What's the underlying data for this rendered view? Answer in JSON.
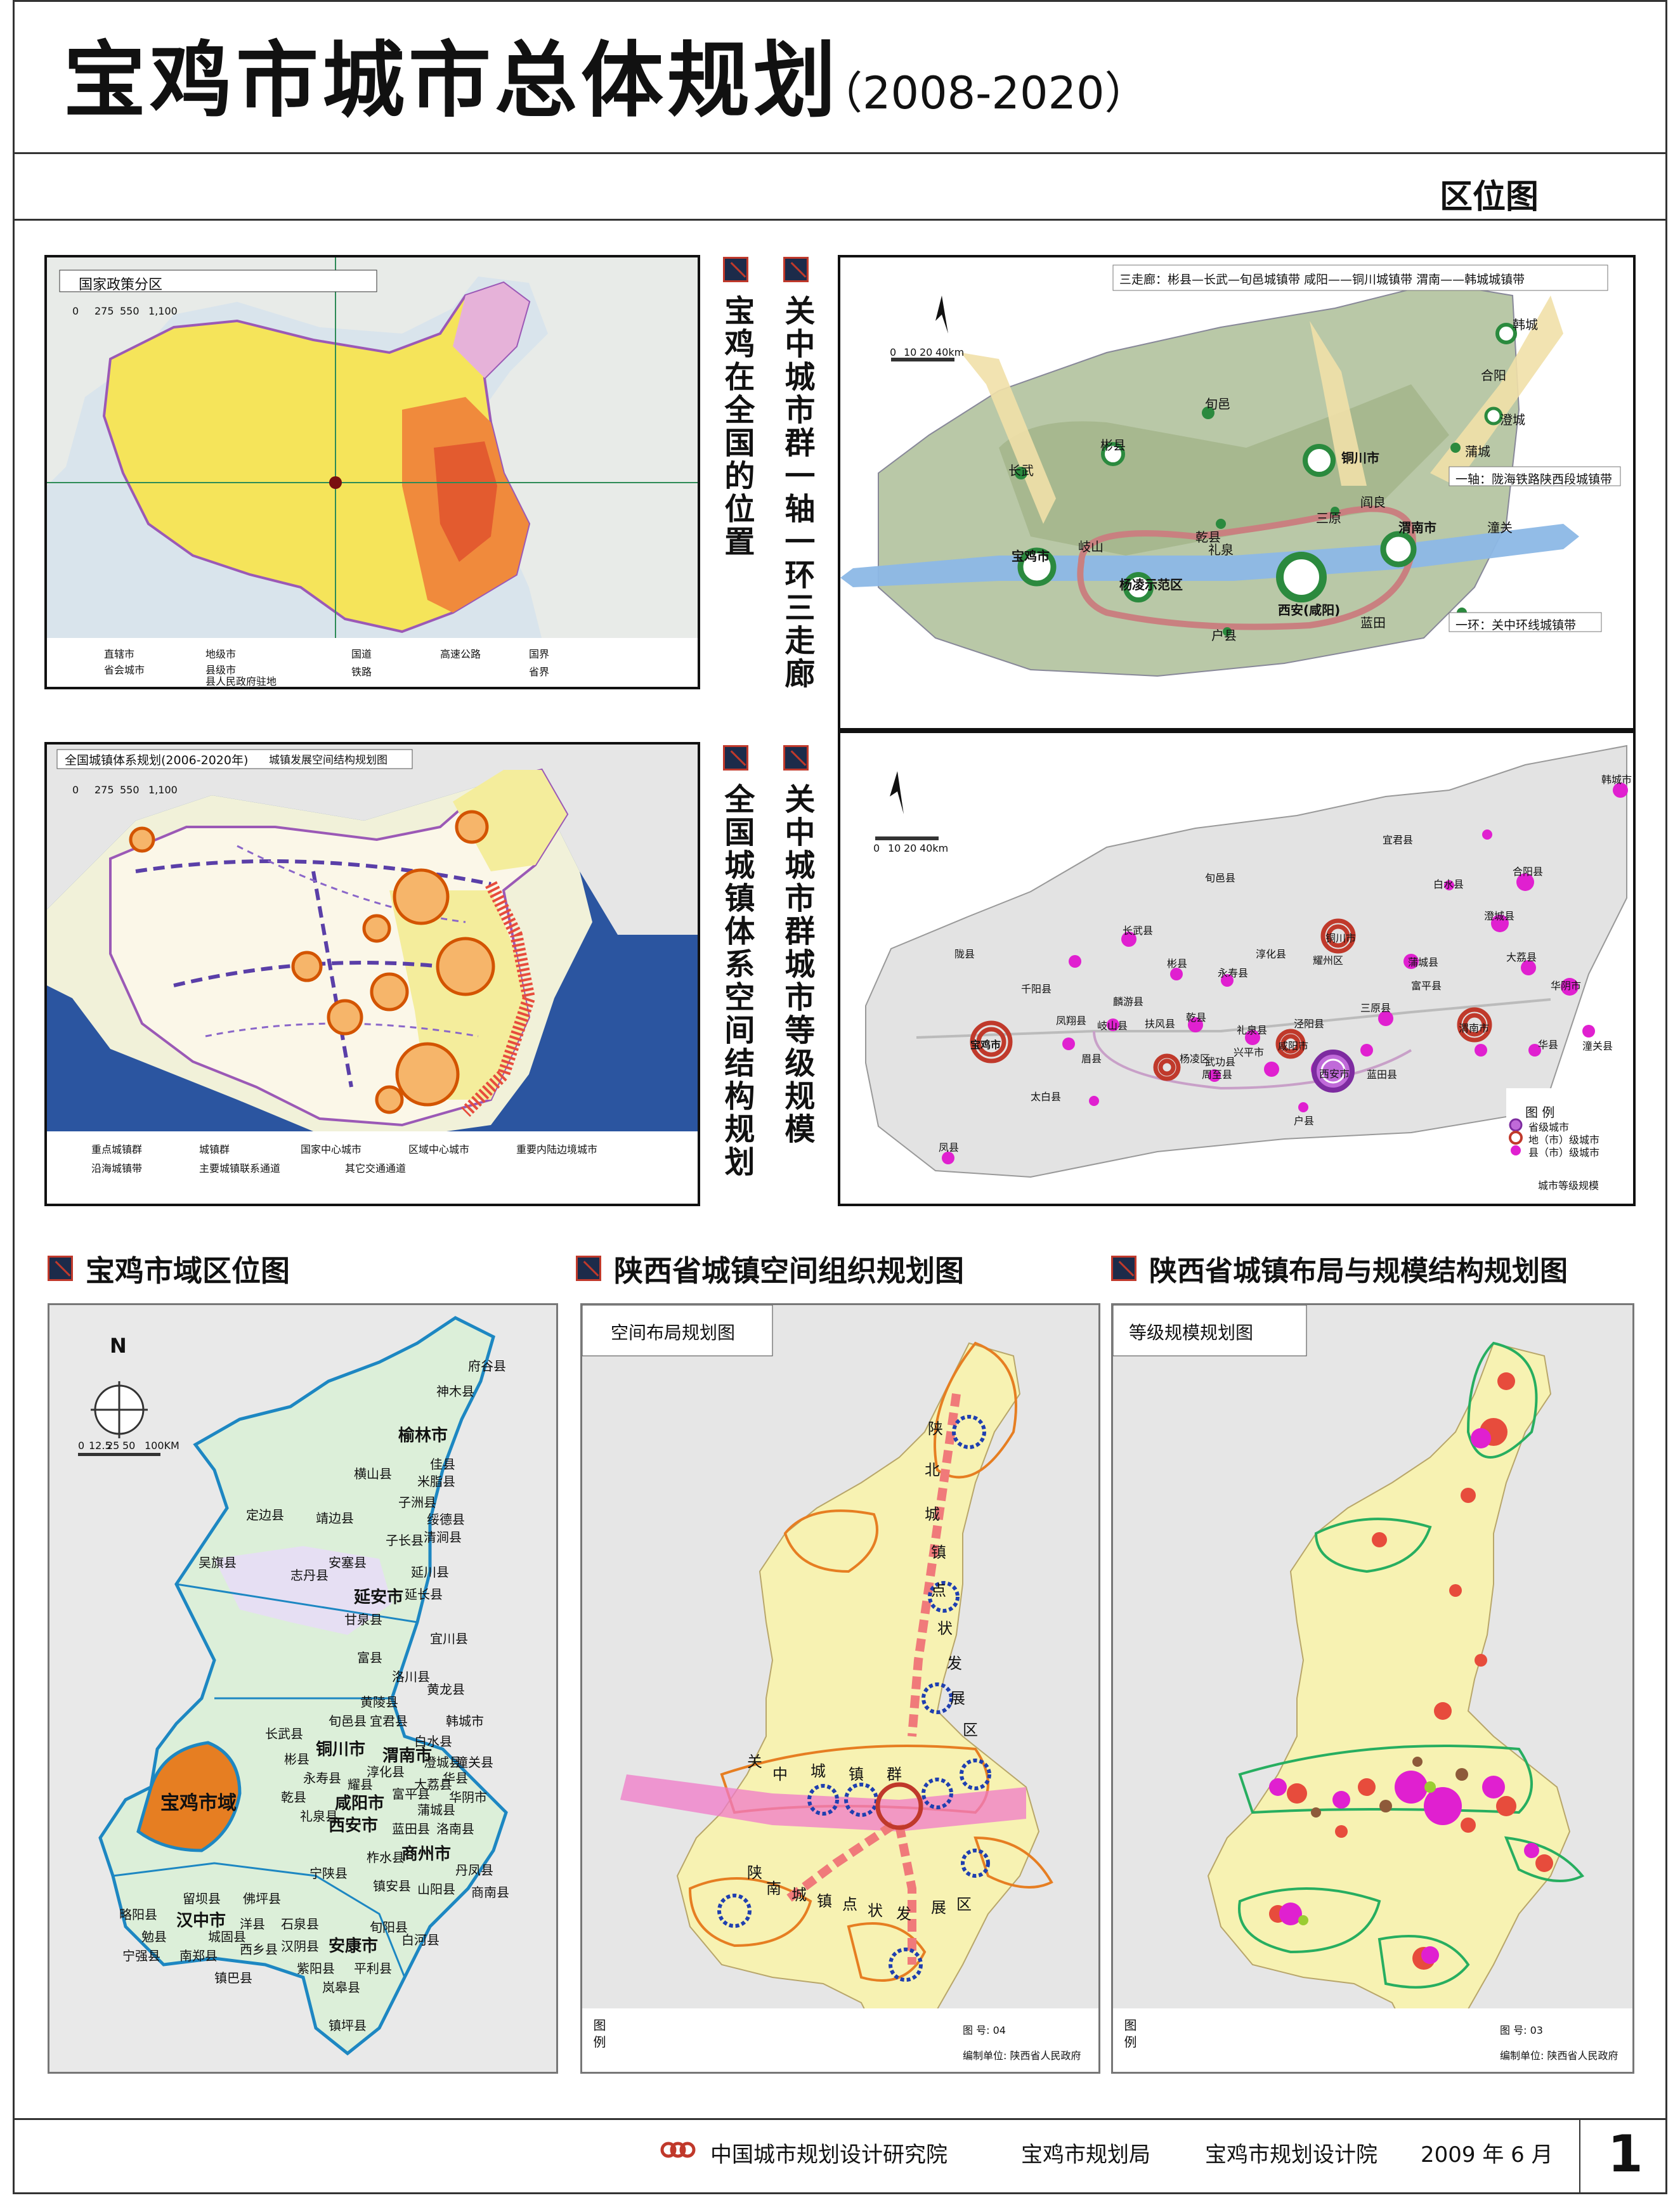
{
  "header": {
    "title": "宝鸡市城市总体规划",
    "years": "（2008-2020）",
    "subtitle": "区位图"
  },
  "panels": {
    "national_position": {
      "title": "宝鸡在全国的位置",
      "inset_title": "国家政策分区",
      "scale": [
        "0",
        "275",
        "550",
        "1,100"
      ],
      "legend": [
        "直辖市",
        "省会城市",
        "地级市",
        "县级市",
        "县人民政府驻地",
        "国道",
        "高速公路",
        "国界",
        "铁路",
        "省界"
      ]
    },
    "guanzhong_axis": {
      "title": "关中城市群一轴一环三走廊",
      "header_note": "三走廊：彬县—长武—旬邑城镇带    咸阳——铜川城镇带    渭南——韩城城镇带",
      "axis_note": "一轴：陇海铁路陕西段城镇带",
      "ring_note": "一环：关中环线城镇带",
      "scale": [
        "0",
        "10",
        "20",
        "40km"
      ],
      "cities": [
        "长武",
        "彬县",
        "旬邑",
        "铜川市",
        "合阳",
        "韩城",
        "澄城",
        "蒲城",
        "宝鸡市",
        "岐山",
        "乾县",
        "礼泉",
        "三原",
        "阎良",
        "渭南市",
        "潼关",
        "杨凌示范区",
        "西安(咸阳)",
        "户县",
        "蓝田"
      ]
    },
    "national_system": {
      "title": "全国城镇体系空间结构规划",
      "inset_title": "全国城镇体系规划(2006-2020年)",
      "inset_subtitle": "城镇发展空间结构规划图",
      "scale": [
        "0",
        "275",
        "550",
        "1,100"
      ],
      "legend": [
        "重点城镇群",
        "城镇群",
        "国家中心城市",
        "区域中心城市",
        "重要内陆边境城市",
        "沿海城镇带",
        "主要城镇联系通道",
        "其它交通通道"
      ]
    },
    "guanzhong_scale": {
      "title": "关中城市群城市等级规模",
      "scale": [
        "0",
        "10",
        "20",
        "40km"
      ],
      "legend_title": "图 例",
      "legend": [
        "省级城市",
        "地（市）级城市",
        "县（市）级城市"
      ],
      "caption": "城市等级规模",
      "cities": [
        "韩城市",
        "宝鸡市",
        "咸阳市",
        "渭南市",
        "铜川市",
        "西安市",
        "杨凌区",
        "凤县",
        "太白县",
        "眉县",
        "周至县",
        "户县",
        "蓝田县",
        "华县",
        "华阴市",
        "潼关县",
        "大荔县",
        "合阳县",
        "澄城县",
        "蒲城县",
        "富平县",
        "耀州区",
        "三原县",
        "泾阳县",
        "礼泉县",
        "乾县",
        "永寿县",
        "彬县",
        "长武县",
        "旬邑县",
        "淳化县",
        "麟游县",
        "千阳县",
        "陇县",
        "凤翔县",
        "岐山县",
        "扶风县",
        "武功县",
        "兴平市",
        "宜君县",
        "白水县"
      ]
    },
    "baoji_location": {
      "title": "宝鸡市域区位图",
      "highlight": "宝鸡市域",
      "scale": [
        "0",
        "12.5",
        "25",
        "50",
        "100KM"
      ],
      "north": "N",
      "cities": [
        "府谷县",
        "神木县",
        "榆林市",
        "佳县",
        "米脂县",
        "横山县",
        "定边县",
        "靖边县",
        "子洲县",
        "绥德县",
        "清涧县",
        "子长县",
        "吴旗县",
        "志丹县",
        "安塞县",
        "延川县",
        "延长县",
        "延安市",
        "甘泉县",
        "宜川县",
        "富县",
        "洛川县",
        "黄陵县",
        "黄龙县",
        "宜君县",
        "韩城市",
        "铜川市",
        "白水县",
        "澄城县",
        "旬邑县",
        "长武县",
        "彬县",
        "永寿县",
        "淳化县",
        "耀县",
        "富平县",
        "蒲城县",
        "大荔县",
        "渭南市",
        "华阴市",
        "潼关县",
        "华县",
        "乾县",
        "礼泉县",
        "咸阳市",
        "西安市",
        "蓝田县",
        "洛南县",
        "商州市",
        "丹凤县",
        "商南县",
        "山阳县",
        "镇安县",
        "柞水县",
        "宁陕县",
        "汉中市",
        "城固县",
        "洋县",
        "佛坪县",
        "留坝县",
        "略阳县",
        "勉县",
        "宁强县",
        "南郑县",
        "西乡县",
        "镇巴县",
        "石泉县",
        "汉阴县",
        "安康市",
        "旬阳县",
        "白河县",
        "平利县",
        "岚皋县",
        "紫阳县",
        "镇坪县"
      ]
    },
    "shaanxi_spatial": {
      "title": "陕西省城镇空间组织规划图",
      "inset_title": "空间布局规划图",
      "axis_chars": [
        "陕",
        "北",
        "城",
        "镇",
        "点",
        "状",
        "发",
        "展",
        "区",
        "关",
        "中",
        "城",
        "镇",
        "群",
        "陕",
        "南",
        "城",
        "镇",
        "点",
        "状",
        "发",
        "展",
        "区"
      ],
      "legend_title": "图 例",
      "figure_no": "图 号: 04",
      "compiler": "编制单位: 陕西省人民政府"
    },
    "shaanxi_scale": {
      "title": "陕西省城镇布局与规模结构规划图",
      "inset_title": "等级规模规划图",
      "legend_title": "图 例",
      "figure_no": "图 号: 03",
      "compiler": "编制单位: 陕西省人民政府"
    }
  },
  "footer": {
    "org1": "中国城市规划设计研究院",
    "org2": "宝鸡市规划局",
    "org3": "宝鸡市规划设计院",
    "date": "2009 年 6 月",
    "page": "1"
  },
  "colors": {
    "accent_red": "#c0392b",
    "navy": "#1c2b4a",
    "yellow_land": "#f3e66b",
    "baoji_orange": "#e67e22",
    "blue_axis": "#8cb8e6",
    "magenta_city": "#e020d0",
    "pink_axis": "#f07ac8"
  }
}
